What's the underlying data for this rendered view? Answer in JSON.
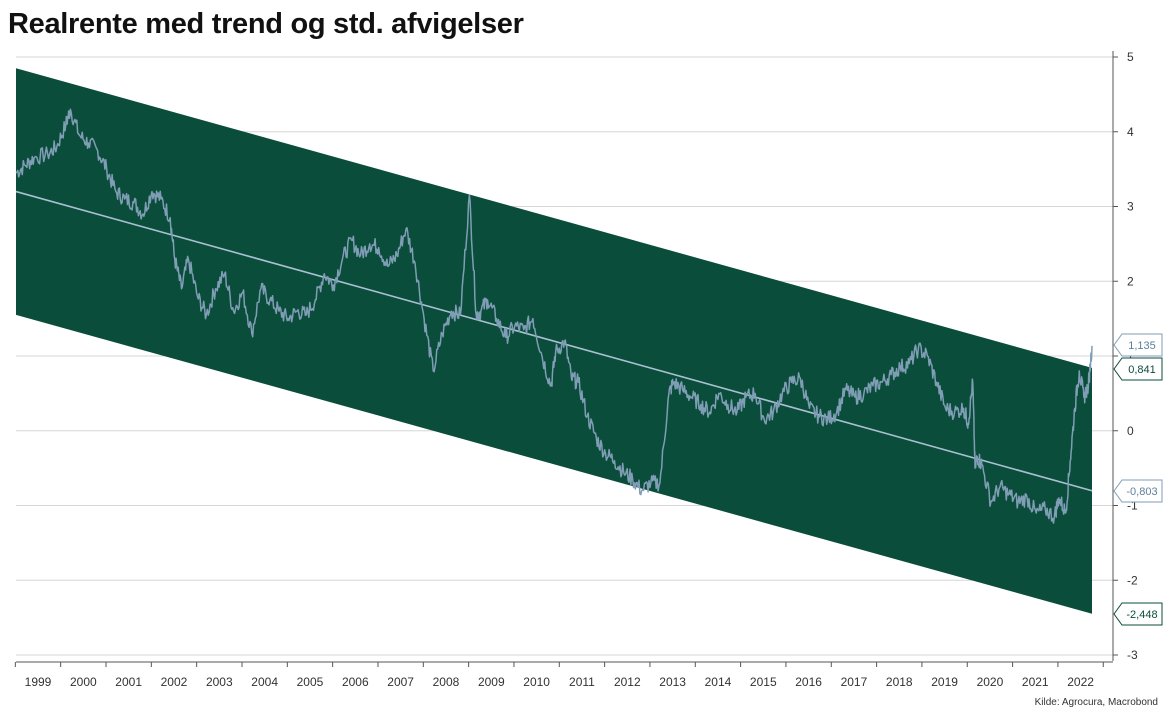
{
  "title": "Realrente med trend og std. afvigelser",
  "source": "Kilde: Agrocura, Macrobond",
  "colors": {
    "band": "#0b4d3b",
    "series": "#7f9db5",
    "trend": "#a9c0d2",
    "grid": "#d6d6d6"
  },
  "chart_data": {
    "type": "line",
    "title": "Realrente med trend og std. afvigelser",
    "xlabel": "",
    "ylabel": "",
    "x_range": [
      1998.6,
      2022.33
    ],
    "ylim": [
      -3,
      5
    ],
    "y_ticks": [
      5,
      4,
      3,
      2,
      1,
      0,
      -1,
      -2,
      -3
    ],
    "y_tick_labels": [
      "5",
      "4",
      "3",
      "2",
      "1",
      "0",
      "-1",
      "-2",
      "-3"
    ],
    "x_ticks": [
      "1999",
      "2000",
      "2001",
      "2002",
      "2003",
      "2004",
      "2005",
      "2006",
      "2007",
      "2008",
      "2009",
      "2010",
      "2011",
      "2012",
      "2013",
      "2014",
      "2015",
      "2016",
      "2017",
      "2018",
      "2019",
      "2020",
      "2021",
      "2022"
    ],
    "grid": true,
    "y_axis_side": "right",
    "series": [
      {
        "role": "realrente",
        "x": [
          1998.6,
          1998.8,
          1999.0,
          1999.3,
          1999.5,
          1999.7,
          1999.8,
          2000.0,
          2000.2,
          2000.4,
          2000.6,
          2000.8,
          2001.0,
          2001.2,
          2001.4,
          2001.6,
          2001.8,
          2002.0,
          2002.1,
          2002.25,
          2002.4,
          2002.6,
          2002.8,
          2003.0,
          2003.2,
          2003.4,
          2003.6,
          2003.8,
          2004.0,
          2004.2,
          2004.4,
          2004.6,
          2004.8,
          2005.0,
          2005.2,
          2005.4,
          2005.6,
          2005.8,
          2006.0,
          2006.2,
          2006.4,
          2006.6,
          2006.8,
          2007.0,
          2007.2,
          2007.4,
          2007.6,
          2007.8,
          2008.0,
          2008.2,
          2008.4,
          2008.6,
          2008.75,
          2008.85,
          2009.0,
          2009.2,
          2009.4,
          2009.6,
          2009.8,
          2010.0,
          2010.2,
          2010.4,
          2010.5,
          2010.7,
          2010.85,
          2011.0,
          2011.2,
          2011.4,
          2011.6,
          2011.8,
          2012.0,
          2012.2,
          2012.4,
          2012.6,
          2012.8,
          2013.0,
          2013.1,
          2013.3,
          2013.5,
          2013.7,
          2013.9,
          2014.1,
          2014.3,
          2014.5,
          2014.7,
          2014.9,
          2015.1,
          2015.3,
          2015.5,
          2015.7,
          2015.9,
          2016.1,
          2016.3,
          2016.5,
          2016.7,
          2016.9,
          2017.1,
          2017.3,
          2017.5,
          2017.7,
          2017.9,
          2018.1,
          2018.3,
          2018.5,
          2018.7,
          2018.9,
          2019.1,
          2019.3,
          2019.5,
          2019.6,
          2019.7,
          2019.75,
          2019.8,
          2019.9,
          2020.1,
          2020.3,
          2020.5,
          2020.7,
          2020.9,
          2021.1,
          2021.3,
          2021.5,
          2021.6,
          2021.75,
          2021.85,
          2021.95,
          2022.05,
          2022.15,
          2022.25,
          2022.33
        ],
        "values": [
          3.45,
          3.55,
          3.65,
          3.7,
          3.8,
          4.1,
          4.3,
          3.95,
          3.85,
          3.75,
          3.5,
          3.2,
          3.1,
          3.05,
          2.9,
          3.2,
          3.1,
          2.85,
          2.3,
          1.9,
          2.3,
          1.8,
          1.55,
          1.9,
          2.1,
          1.6,
          1.85,
          1.3,
          1.9,
          1.75,
          1.6,
          1.5,
          1.6,
          1.55,
          1.75,
          2.1,
          1.95,
          2.3,
          2.55,
          2.35,
          2.5,
          2.45,
          2.2,
          2.35,
          2.7,
          2.25,
          1.5,
          0.8,
          1.3,
          1.6,
          1.55,
          3.15,
          1.55,
          1.6,
          1.75,
          1.5,
          1.25,
          1.4,
          1.35,
          1.5,
          1.0,
          0.6,
          1.05,
          1.2,
          0.7,
          0.65,
          0.2,
          -0.1,
          -0.3,
          -0.4,
          -0.55,
          -0.65,
          -0.8,
          -0.7,
          -0.7,
          0.5,
          0.65,
          0.55,
          0.45,
          0.35,
          0.25,
          0.5,
          0.35,
          0.25,
          0.45,
          0.5,
          0.15,
          0.25,
          0.5,
          0.65,
          0.7,
          0.3,
          0.2,
          0.15,
          0.25,
          0.55,
          0.45,
          0.5,
          0.6,
          0.65,
          0.75,
          0.85,
          0.9,
          1.1,
          1.0,
          0.65,
          0.3,
          0.25,
          0.3,
          0.1,
          0.65,
          -0.5,
          -0.35,
          -0.45,
          -0.95,
          -0.75,
          -0.85,
          -0.95,
          -0.9,
          -1.1,
          -1.05,
          -1.15,
          -0.9,
          -1.1,
          -0.4,
          0.3,
          0.8,
          0.45,
          0.6,
          1.135
        ]
      }
    ],
    "trend": {
      "start": 3.2,
      "end": -0.803
    },
    "band": {
      "upper_start": 4.85,
      "upper_end": 0.841,
      "lower_start": 1.55,
      "lower_end": -2.448
    },
    "end_labels": [
      {
        "label": "1,135",
        "value": 1.135,
        "role": "series"
      },
      {
        "label": "0,841",
        "value": 0.841,
        "role": "band"
      },
      {
        "label": "-0,803",
        "value": -0.803,
        "role": "trend"
      },
      {
        "label": "-2,448",
        "value": -2.448,
        "role": "band"
      }
    ]
  }
}
